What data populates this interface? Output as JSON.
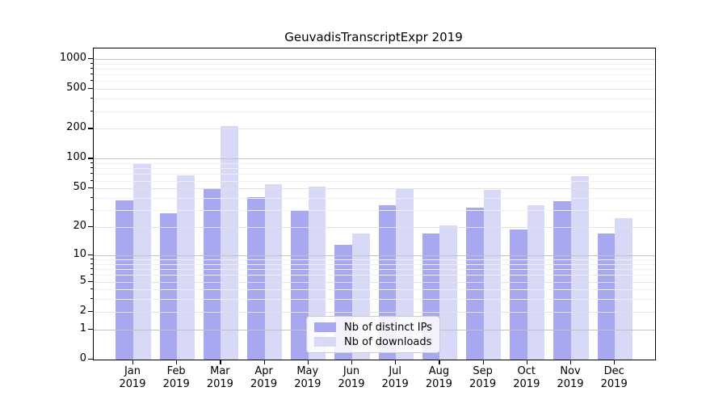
{
  "title": "GeuvadisTranscriptExpr 2019",
  "legend": {
    "items": [
      {
        "label": "Nb of distinct IPs",
        "color": "#a8a8f0"
      },
      {
        "label": "Nb of downloads",
        "color": "#d8d8f7"
      }
    ]
  },
  "chart_data": {
    "type": "bar",
    "title": "GeuvadisTranscriptExpr 2019",
    "categories": [
      "Jan 2019",
      "Feb 2019",
      "Mar 2019",
      "Apr 2019",
      "May 2019",
      "Jun 2019",
      "Jul 2019",
      "Aug 2019",
      "Sep 2019",
      "Oct 2019",
      "Nov 2019",
      "Dec 2019"
    ],
    "series": [
      {
        "name": "Nb of distinct IPs",
        "color": "#a8a8f0",
        "values": [
          38,
          28,
          50,
          41,
          30,
          13,
          34,
          17,
          32,
          19,
          37,
          17
        ]
      },
      {
        "name": "Nb of downloads",
        "color": "#d8d8f7",
        "values": [
          90,
          68,
          215,
          55,
          52,
          17,
          50,
          21,
          48,
          34,
          67,
          25
        ]
      }
    ],
    "xlabel": "",
    "ylabel": "",
    "yscale": "log10(1+x)",
    "yticks": [
      0,
      1,
      2,
      5,
      10,
      20,
      50,
      100,
      200,
      500,
      1000
    ],
    "major_yticks": [
      1,
      10,
      100,
      1000
    ],
    "ylim": [
      0,
      1270
    ],
    "grid": true,
    "legend_position": "lower center"
  }
}
